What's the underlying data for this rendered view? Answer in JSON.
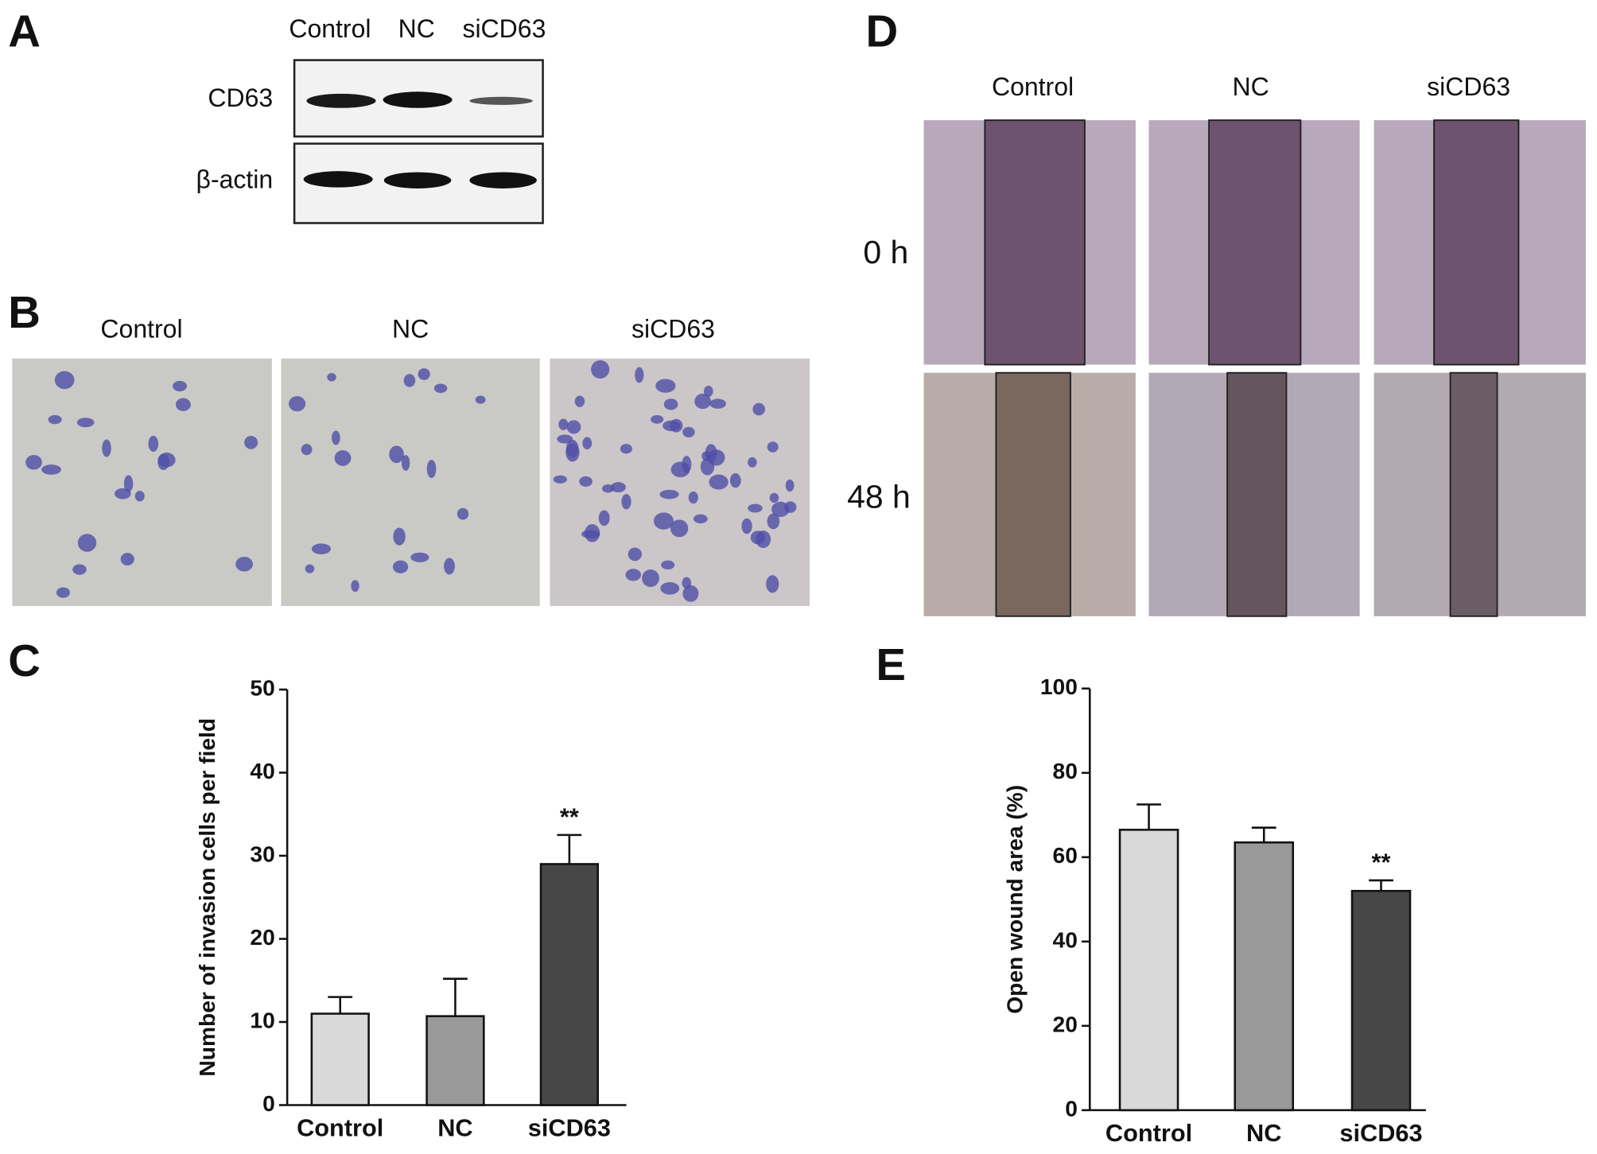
{
  "panel_labels": [
    "A",
    "B",
    "C",
    "D",
    "E"
  ],
  "western_blot": {
    "lanes": [
      "Control",
      "NC",
      "siCD63"
    ],
    "rows": [
      "CD63",
      "β-actin"
    ]
  },
  "invasion_images": {
    "columns": [
      "Control",
      "NC",
      "siCD63"
    ]
  },
  "wound_images": {
    "columns": [
      "Control",
      "NC",
      "siCD63"
    ],
    "rows": [
      "0 h",
      "48 h"
    ]
  },
  "chart_data": [
    {
      "type": "bar",
      "y_label": "Number of invasion cells per field",
      "categories": [
        "Control",
        "NC",
        "siCD63"
      ],
      "values": [
        11,
        10.7,
        29
      ],
      "errors": [
        2,
        4.5,
        3.5
      ],
      "colors": [
        "#d9d9d9",
        "#999999",
        "#474747"
      ],
      "ylim": [
        0,
        50
      ],
      "yticks": [
        0,
        10,
        20,
        30,
        40,
        50
      ],
      "annotations": [
        {
          "x": "siCD63",
          "text": "**"
        }
      ]
    },
    {
      "type": "bar",
      "y_label": "Open wound area (%)",
      "categories": [
        "Control",
        "NC",
        "siCD63"
      ],
      "values": [
        66.5,
        63.5,
        52
      ],
      "errors": [
        6,
        3.5,
        2.5
      ],
      "colors": [
        "#d9d9d9",
        "#999999",
        "#474747"
      ],
      "ylim": [
        0,
        100
      ],
      "yticks": [
        0,
        20,
        40,
        60,
        80,
        100
      ],
      "annotations": [
        {
          "x": "siCD63",
          "text": "**"
        }
      ]
    }
  ]
}
